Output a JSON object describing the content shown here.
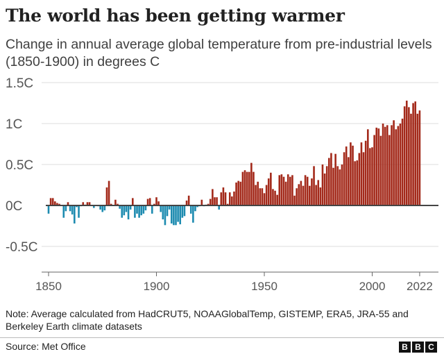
{
  "title": "The world has been getting warmer",
  "subtitle": "Change in annual average global temperature from pre-industrial levels (1850-1900) in degrees C",
  "note": "Note: Average calculated from HadCRUT5, NOAAGlobalTemp, GISTEMP, ERA5, JRA-55 and Berkeley Earth climate datasets",
  "source": "Source: Met Office",
  "logo": "BBC",
  "colors": {
    "positive": "#a3291a",
    "negative": "#1d8bb0",
    "grid": "#dcdcdc",
    "axis": "#444444"
  },
  "chart_data": {
    "type": "bar",
    "title": "The world has been getting warmer",
    "ylabel": "",
    "xlabel": "",
    "x_start": 1850,
    "x_end": 2022,
    "ylim": [
      -0.6,
      1.5
    ],
    "yticks": [
      {
        "v": 1.5,
        "label": "1.5C"
      },
      {
        "v": 1,
        "label": "1C"
      },
      {
        "v": 0.5,
        "label": "0.5C"
      },
      {
        "v": 0,
        "label": "0C"
      },
      {
        "v": -0.5,
        "label": "-0.5C"
      }
    ],
    "xticks": [
      {
        "v": 1850,
        "label": "1850"
      },
      {
        "v": 1900,
        "label": "1900"
      },
      {
        "v": 1950,
        "label": "1950"
      },
      {
        "v": 2000,
        "label": "2000"
      },
      {
        "v": 2022,
        "label": "2022"
      }
    ],
    "grid": true,
    "values": [
      -0.1,
      0.09,
      0.09,
      0.05,
      0.03,
      0.02,
      0.0,
      -0.15,
      -0.07,
      0.04,
      -0.07,
      -0.11,
      -0.22,
      -0.02,
      -0.15,
      -0.01,
      0.04,
      0.01,
      0.04,
      0.04,
      0.0,
      -0.03,
      0.0,
      -0.01,
      -0.05,
      -0.08,
      -0.06,
      0.22,
      0.3,
      0.02,
      0.0,
      0.07,
      0.02,
      -0.04,
      -0.15,
      -0.12,
      -0.08,
      -0.17,
      -0.05,
      0.09,
      -0.15,
      -0.1,
      -0.15,
      -0.12,
      -0.1,
      -0.06,
      0.08,
      0.09,
      -0.1,
      0.02,
      0.1,
      0.05,
      -0.08,
      -0.17,
      -0.24,
      -0.13,
      -0.05,
      -0.22,
      -0.24,
      -0.24,
      -0.2,
      -0.23,
      -0.15,
      -0.13,
      0.06,
      0.12,
      -0.1,
      -0.21,
      -0.07,
      -0.02,
      -0.01,
      0.07,
      -0.01,
      0.01,
      0.02,
      0.08,
      0.2,
      0.1,
      0.1,
      -0.05,
      0.16,
      0.22,
      0.16,
      0.02,
      0.16,
      0.11,
      0.17,
      0.28,
      0.3,
      0.29,
      0.41,
      0.43,
      0.41,
      0.41,
      0.52,
      0.41,
      0.25,
      0.29,
      0.21,
      0.21,
      0.15,
      0.25,
      0.33,
      0.4,
      0.2,
      0.18,
      0.13,
      0.37,
      0.38,
      0.35,
      0.29,
      0.38,
      0.35,
      0.37,
      0.12,
      0.21,
      0.26,
      0.3,
      0.24,
      0.37,
      0.35,
      0.24,
      0.33,
      0.48,
      0.25,
      0.31,
      0.22,
      0.5,
      0.39,
      0.48,
      0.58,
      0.64,
      0.46,
      0.63,
      0.48,
      0.44,
      0.5,
      0.65,
      0.72,
      0.59,
      0.77,
      0.73,
      0.54,
      0.55,
      0.64,
      0.77,
      0.65,
      0.79,
      0.93,
      0.7,
      0.71,
      0.86,
      0.95,
      0.94,
      0.85,
      1.0,
      0.96,
      0.98,
      0.86,
      0.98,
      1.04,
      0.93,
      0.97,
      1.0,
      1.06,
      1.21,
      1.28,
      1.2,
      1.12,
      1.25,
      1.27,
      1.12,
      1.16
    ]
  }
}
